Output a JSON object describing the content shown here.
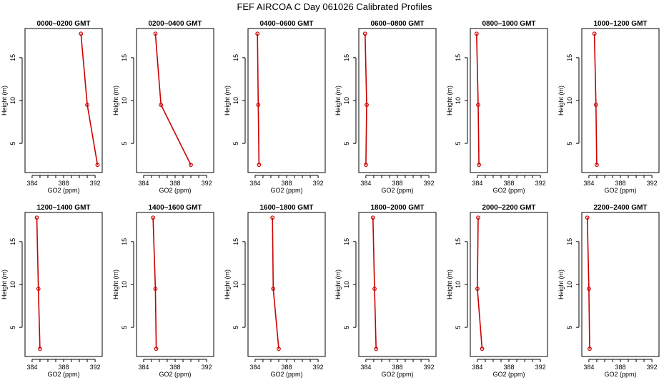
{
  "page": {
    "title": "FEF AIRCOA C  Day 061026  Calibrated Profiles"
  },
  "chart_data": [
    {
      "type": "line",
      "title": "0000–0200 GMT",
      "xlabel": "GO2 (ppm)",
      "ylabel": "Height (m)",
      "xlim": [
        383.1,
        392.9
      ],
      "ylim": [
        1.6,
        18.4
      ],
      "x_ticks": [
        384,
        388,
        392
      ],
      "y_ticks": [
        5,
        10,
        15
      ],
      "color": "#cc0000",
      "series": [
        {
          "x": [
            392.3,
            391.0,
            390.2
          ],
          "y": [
            2.5,
            9.5,
            17.8
          ]
        }
      ]
    },
    {
      "type": "line",
      "title": "0200–0400 GMT",
      "xlabel": "GO2 (ppm)",
      "ylabel": "Height (m)",
      "xlim": [
        383.1,
        392.9
      ],
      "ylim": [
        1.6,
        18.4
      ],
      "x_ticks": [
        384,
        388,
        392
      ],
      "y_ticks": [
        5,
        10,
        15
      ],
      "color": "#cc0000",
      "series": [
        {
          "x": [
            390.0,
            386.2,
            385.5
          ],
          "y": [
            2.5,
            9.5,
            17.8
          ]
        }
      ]
    },
    {
      "type": "line",
      "title": "0400–0600 GMT",
      "xlabel": "GO2 (ppm)",
      "ylabel": "Height (m)",
      "xlim": [
        383.1,
        392.9
      ],
      "ylim": [
        1.6,
        18.4
      ],
      "x_ticks": [
        384,
        388,
        392
      ],
      "y_ticks": [
        5,
        10,
        15
      ],
      "color": "#cc0000",
      "series": [
        {
          "x": [
            384.5,
            384.4,
            384.3
          ],
          "y": [
            2.5,
            9.5,
            17.8
          ]
        }
      ]
    },
    {
      "type": "line",
      "title": "0600–0800 GMT",
      "xlabel": "GO2 (ppm)",
      "ylabel": "Height (m)",
      "xlim": [
        383.1,
        392.9
      ],
      "ylim": [
        1.6,
        18.4
      ],
      "x_ticks": [
        384,
        388,
        392
      ],
      "y_ticks": [
        5,
        10,
        15
      ],
      "color": "#cc0000",
      "series": [
        {
          "x": [
            384.0,
            384.1,
            383.9
          ],
          "y": [
            2.5,
            9.5,
            17.8
          ]
        }
      ]
    },
    {
      "type": "line",
      "title": "0800–1000 GMT",
      "xlabel": "GO2 (ppm)",
      "ylabel": "Height (m)",
      "xlim": [
        383.1,
        392.9
      ],
      "ylim": [
        1.6,
        18.4
      ],
      "x_ticks": [
        384,
        388,
        392
      ],
      "y_ticks": [
        5,
        10,
        15
      ],
      "color": "#cc0000",
      "series": [
        {
          "x": [
            384.2,
            384.1,
            383.9
          ],
          "y": [
            2.5,
            9.5,
            17.8
          ]
        }
      ]
    },
    {
      "type": "line",
      "title": "1000–1200 GMT",
      "xlabel": "GO2 (ppm)",
      "ylabel": "Height (m)",
      "xlim": [
        383.1,
        392.9
      ],
      "ylim": [
        1.6,
        18.4
      ],
      "x_ticks": [
        384,
        388,
        392
      ],
      "y_ticks": [
        5,
        10,
        15
      ],
      "color": "#cc0000",
      "series": [
        {
          "x": [
            385.0,
            384.9,
            384.7
          ],
          "y": [
            2.5,
            9.5,
            17.8
          ]
        }
      ]
    },
    {
      "type": "line",
      "title": "1200–1400 GMT",
      "xlabel": "GO2 (ppm)",
      "ylabel": "Height (m)",
      "xlim": [
        383.1,
        392.9
      ],
      "ylim": [
        1.6,
        18.4
      ],
      "x_ticks": [
        384,
        388,
        392
      ],
      "y_ticks": [
        5,
        10,
        15
      ],
      "color": "#cc0000",
      "series": [
        {
          "x": [
            385.0,
            384.8,
            384.6
          ],
          "y": [
            2.5,
            9.5,
            17.8
          ]
        }
      ]
    },
    {
      "type": "line",
      "title": "1400–1600 GMT",
      "xlabel": "GO2 (ppm)",
      "ylabel": "Height (m)",
      "xlim": [
        383.1,
        392.9
      ],
      "ylim": [
        1.6,
        18.4
      ],
      "x_ticks": [
        384,
        388,
        392
      ],
      "y_ticks": [
        5,
        10,
        15
      ],
      "color": "#cc0000",
      "series": [
        {
          "x": [
            385.6,
            385.5,
            385.2
          ],
          "y": [
            2.5,
            9.5,
            17.8
          ]
        }
      ]
    },
    {
      "type": "line",
      "title": "1600–1800 GMT",
      "xlabel": "GO2 (ppm)",
      "ylabel": "Height (m)",
      "xlim": [
        383.1,
        392.9
      ],
      "ylim": [
        1.6,
        18.4
      ],
      "x_ticks": [
        384,
        388,
        392
      ],
      "y_ticks": [
        5,
        10,
        15
      ],
      "color": "#cc0000",
      "series": [
        {
          "x": [
            387.0,
            386.3,
            386.2
          ],
          "y": [
            2.5,
            9.5,
            17.8
          ]
        }
      ]
    },
    {
      "type": "line",
      "title": "1800–2000 GMT",
      "xlabel": "GO2 (ppm)",
      "ylabel": "Height (m)",
      "xlim": [
        383.1,
        392.9
      ],
      "ylim": [
        1.6,
        18.4
      ],
      "x_ticks": [
        384,
        388,
        392
      ],
      "y_ticks": [
        5,
        10,
        15
      ],
      "color": "#cc0000",
      "series": [
        {
          "x": [
            385.3,
            385.1,
            384.9
          ],
          "y": [
            2.5,
            9.5,
            17.8
          ]
        }
      ]
    },
    {
      "type": "line",
      "title": "2000–2200 GMT",
      "xlabel": "GO2 (ppm)",
      "ylabel": "Height (m)",
      "xlim": [
        383.1,
        392.9
      ],
      "ylim": [
        1.6,
        18.4
      ],
      "x_ticks": [
        384,
        388,
        392
      ],
      "y_ticks": [
        5,
        10,
        15
      ],
      "color": "#cc0000",
      "series": [
        {
          "x": [
            384.6,
            384.0,
            384.1
          ],
          "y": [
            2.5,
            9.5,
            17.8
          ]
        }
      ]
    },
    {
      "type": "line",
      "title": "2200–2400 GMT",
      "xlabel": "GO2 (ppm)",
      "ylabel": "Height (m)",
      "xlim": [
        383.1,
        392.9
      ],
      "ylim": [
        1.6,
        18.4
      ],
      "x_ticks": [
        384,
        388,
        392
      ],
      "y_ticks": [
        5,
        10,
        15
      ],
      "color": "#cc0000",
      "series": [
        {
          "x": [
            384.1,
            384.0,
            383.8
          ],
          "y": [
            2.5,
            9.5,
            17.8
          ]
        }
      ]
    }
  ]
}
